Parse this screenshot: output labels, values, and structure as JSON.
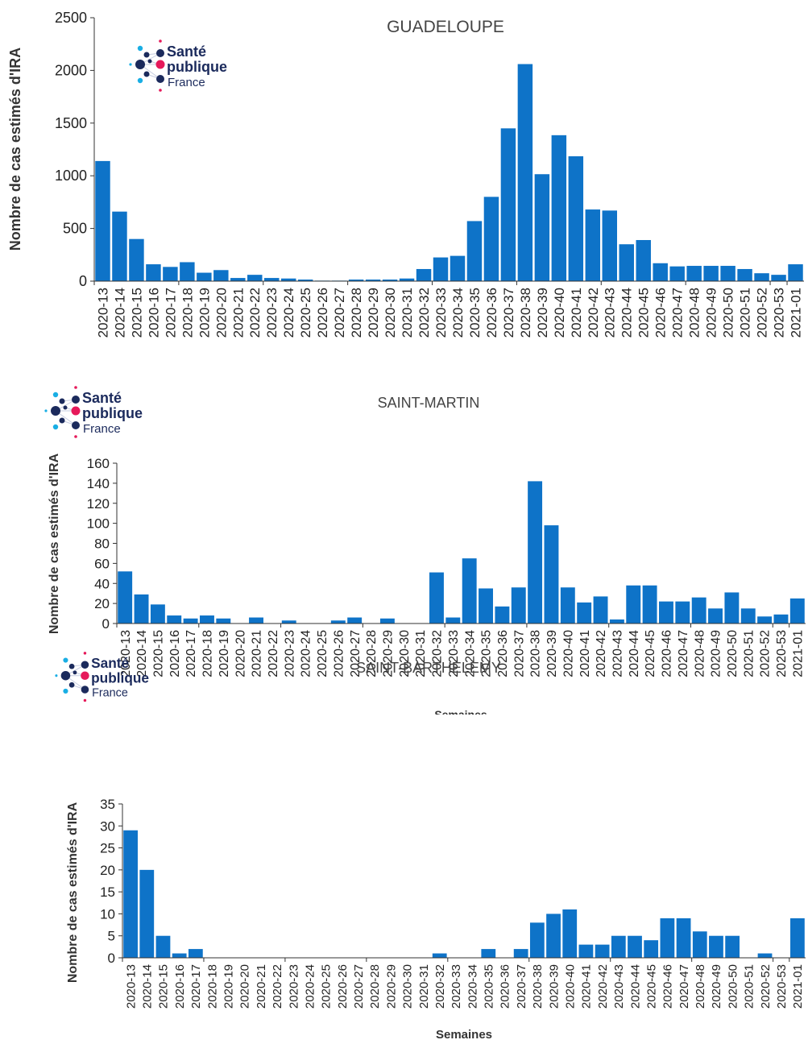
{
  "logo": {
    "line1": "Santé",
    "line2": "publique",
    "line3": "France"
  },
  "colors": {
    "bar": "#0e73c8",
    "axis": "#333333",
    "logo_blue": "#1b2a5c",
    "logo_pink": "#e6195a",
    "logo_cyan": "#19aee4"
  },
  "chart_data": [
    {
      "type": "bar",
      "title": "GUADELOUPE",
      "ylabel": "Nombre de cas estimés d'IRA",
      "xlabel": "",
      "ylim": [
        0,
        2500
      ],
      "yticks": [
        0,
        500,
        1000,
        1500,
        2000,
        2500
      ],
      "grid": false,
      "categories": [
        "2020-13",
        "2020-14",
        "2020-15",
        "2020-16",
        "2020-17",
        "2020-18",
        "2020-19",
        "2020-20",
        "2020-21",
        "2020-22",
        "2020-23",
        "2020-24",
        "2020-25",
        "2020-26",
        "2020-27",
        "2020-28",
        "2020-29",
        "2020-30",
        "2020-31",
        "2020-32",
        "2020-33",
        "2020-34",
        "2020-35",
        "2020-36",
        "2020-37",
        "2020-38",
        "2020-39",
        "2020-40",
        "2020-41",
        "2020-42",
        "2020-43",
        "2020-44",
        "2020-45",
        "2020-46",
        "2020-47",
        "2020-48",
        "2020-49",
        "2020-50",
        "2020-51",
        "2020-52",
        "2020-53",
        "2021-01"
      ],
      "tick_labels": [
        "2020-13",
        "2020-14",
        "2020-15",
        "2020-16",
        "2020-17",
        "2020-18",
        "2020-19",
        "2020-20",
        "2020-21",
        "2020-22",
        "2020-23",
        "2020-24",
        "2020-25",
        "2020-26",
        "2020-27",
        "2020-28",
        "2020-29",
        "2020-30",
        "2020-31",
        "2020-32",
        "2020-33",
        "2020-34",
        "2020-35",
        "2020-36",
        "2020-37",
        "2020-38",
        "2020-39",
        "2020-40",
        "2020-41",
        "2020-42",
        "2020-43",
        "2020-44",
        "2020-45",
        "2020-46",
        "2020-47",
        "2020-48",
        "2020-49",
        "2020-50",
        "2020-51",
        "2020-52",
        "2020-53",
        "2021-01"
      ],
      "values": [
        1140,
        660,
        400,
        160,
        135,
        180,
        80,
        105,
        30,
        60,
        30,
        25,
        15,
        5,
        5,
        15,
        15,
        15,
        25,
        115,
        225,
        240,
        570,
        800,
        1450,
        2060,
        1015,
        1385,
        1185,
        680,
        670,
        350,
        390,
        170,
        140,
        145,
        145,
        145,
        115,
        75,
        60,
        160
      ]
    },
    {
      "type": "bar",
      "title": "SAINT-MARTIN",
      "ylabel": "Nombre de cas estimés d'IRA",
      "xlabel": "Semaines",
      "ylim": [
        0,
        160
      ],
      "yticks": [
        0,
        20,
        40,
        60,
        80,
        100,
        120,
        140,
        160
      ],
      "grid": false,
      "categories": [
        "2020-13",
        "2020-14",
        "2020-15",
        "2020-16",
        "2020-17",
        "2020-18",
        "2020-19",
        "2020-20",
        "2020-21",
        "2020-22",
        "2020-23",
        "2020-24",
        "2020-25",
        "2020-26",
        "2020-27",
        "2020-28",
        "2020-29",
        "2020-30",
        "2020-31",
        "2020-32",
        "2020-33",
        "2020-34",
        "2020-35",
        "2020-36",
        "2020-37",
        "2020-38",
        "2020-39",
        "2020-40",
        "2020-41",
        "2020-42",
        "2020-43",
        "2020-44",
        "2020-45",
        "2020-46",
        "2020-47",
        "2020-48",
        "2020-49",
        "2020-50",
        "2020-51",
        "2020-52",
        "2020-53",
        "2021-01"
      ],
      "tick_labels": [
        "2020-13",
        "2020-14",
        "2020-15",
        "2020-16",
        "2020-17",
        "2020-18",
        "2020-19",
        "2020-20",
        "2020-21",
        "2020-22",
        "2020-23",
        "2020-24",
        "2020-25",
        "2020-26",
        "2020-27",
        "2020-28",
        "2020-29",
        "2020-30",
        "2020-31",
        "2020-32",
        "2020-33",
        "2020-34",
        "2020-35",
        "2020-36",
        "2020-37",
        "2020-38",
        "2020-39",
        "2020-40",
        "2020-41",
        "2020-42",
        "2020-43",
        "2020-44",
        "2020-45",
        "2020-46",
        "2020-47",
        "2020-48",
        "2020-49",
        "2020-50",
        "2020-51",
        "2020-52",
        "2020-53",
        "2021-01"
      ],
      "values": [
        52,
        29,
        19,
        8,
        5,
        8,
        5,
        0,
        6,
        0,
        3,
        0,
        0,
        3,
        6,
        0,
        5,
        0,
        0,
        51,
        6,
        65,
        35,
        17,
        36,
        142,
        98,
        36,
        21,
        27,
        4,
        38,
        38,
        22,
        22,
        26,
        15,
        31,
        15,
        7,
        9,
        25
      ]
    },
    {
      "type": "bar",
      "title": "SAINT-BARTHELEMY",
      "ylabel": "Nombre de cas estimés d'IRA",
      "xlabel": "Semaines",
      "ylim": [
        0,
        35
      ],
      "yticks": [
        0,
        5,
        10,
        15,
        20,
        25,
        30,
        35
      ],
      "grid": false,
      "categories": [
        "2020-13",
        "2020-14",
        "2020-15",
        "2020-16",
        "2020-17",
        "2020-18",
        "2020-19",
        "2020-20",
        "2020-21",
        "2020-22",
        "2020-23",
        "2020-24",
        "2020-25",
        "2020-26",
        "2020-27",
        "2020-28",
        "2020-29",
        "2020-30",
        "2020-31",
        "2020-32",
        "2020-33",
        "2020-34",
        "2020-35",
        "2020-36",
        "2020-37",
        "2020-38",
        "2020-39",
        "2020-40",
        "2020-41",
        "2020-42",
        "2020-43",
        "2020-44",
        "2020-45",
        "2020-46",
        "2020-47",
        "2020-48",
        "2020-49",
        "2020-50",
        "2020-51",
        "2020-52",
        "2020-53",
        "2021-01"
      ],
      "tick_labels": [
        "2020-13",
        "2020-14",
        "2020-15",
        "2020-16",
        "2020-17",
        "2020-18",
        "2020-19",
        "2020-20",
        "2020-21",
        "2020-22",
        "2020-23",
        "2020-24",
        "2020-25",
        "2020-26",
        "2020-27",
        "2020-28",
        "2020-29",
        "2020-30",
        "2020-31",
        "2020-32",
        "2020-33",
        "2020-34",
        "2020-35",
        "2020-36",
        "2020-37",
        "2020-38",
        "2020-39",
        "2020-40",
        "2020-41",
        "2020-42",
        "2020-43",
        "2020-44",
        "2020-45",
        "2020-46",
        "2020-47",
        "2020-48",
        "2020-49",
        "2020-50",
        "2020-51",
        "2020-52",
        "2020-53",
        "2021-01"
      ],
      "values": [
        29,
        20,
        5,
        1,
        2,
        0,
        0,
        0,
        0,
        0,
        0,
        0,
        0,
        0,
        0,
        0,
        0,
        0,
        0,
        1,
        0,
        0,
        2,
        0,
        2,
        8,
        10,
        11,
        3,
        3,
        5,
        5,
        4,
        9,
        9,
        6,
        5,
        5,
        0,
        1,
        0,
        9
      ]
    }
  ]
}
